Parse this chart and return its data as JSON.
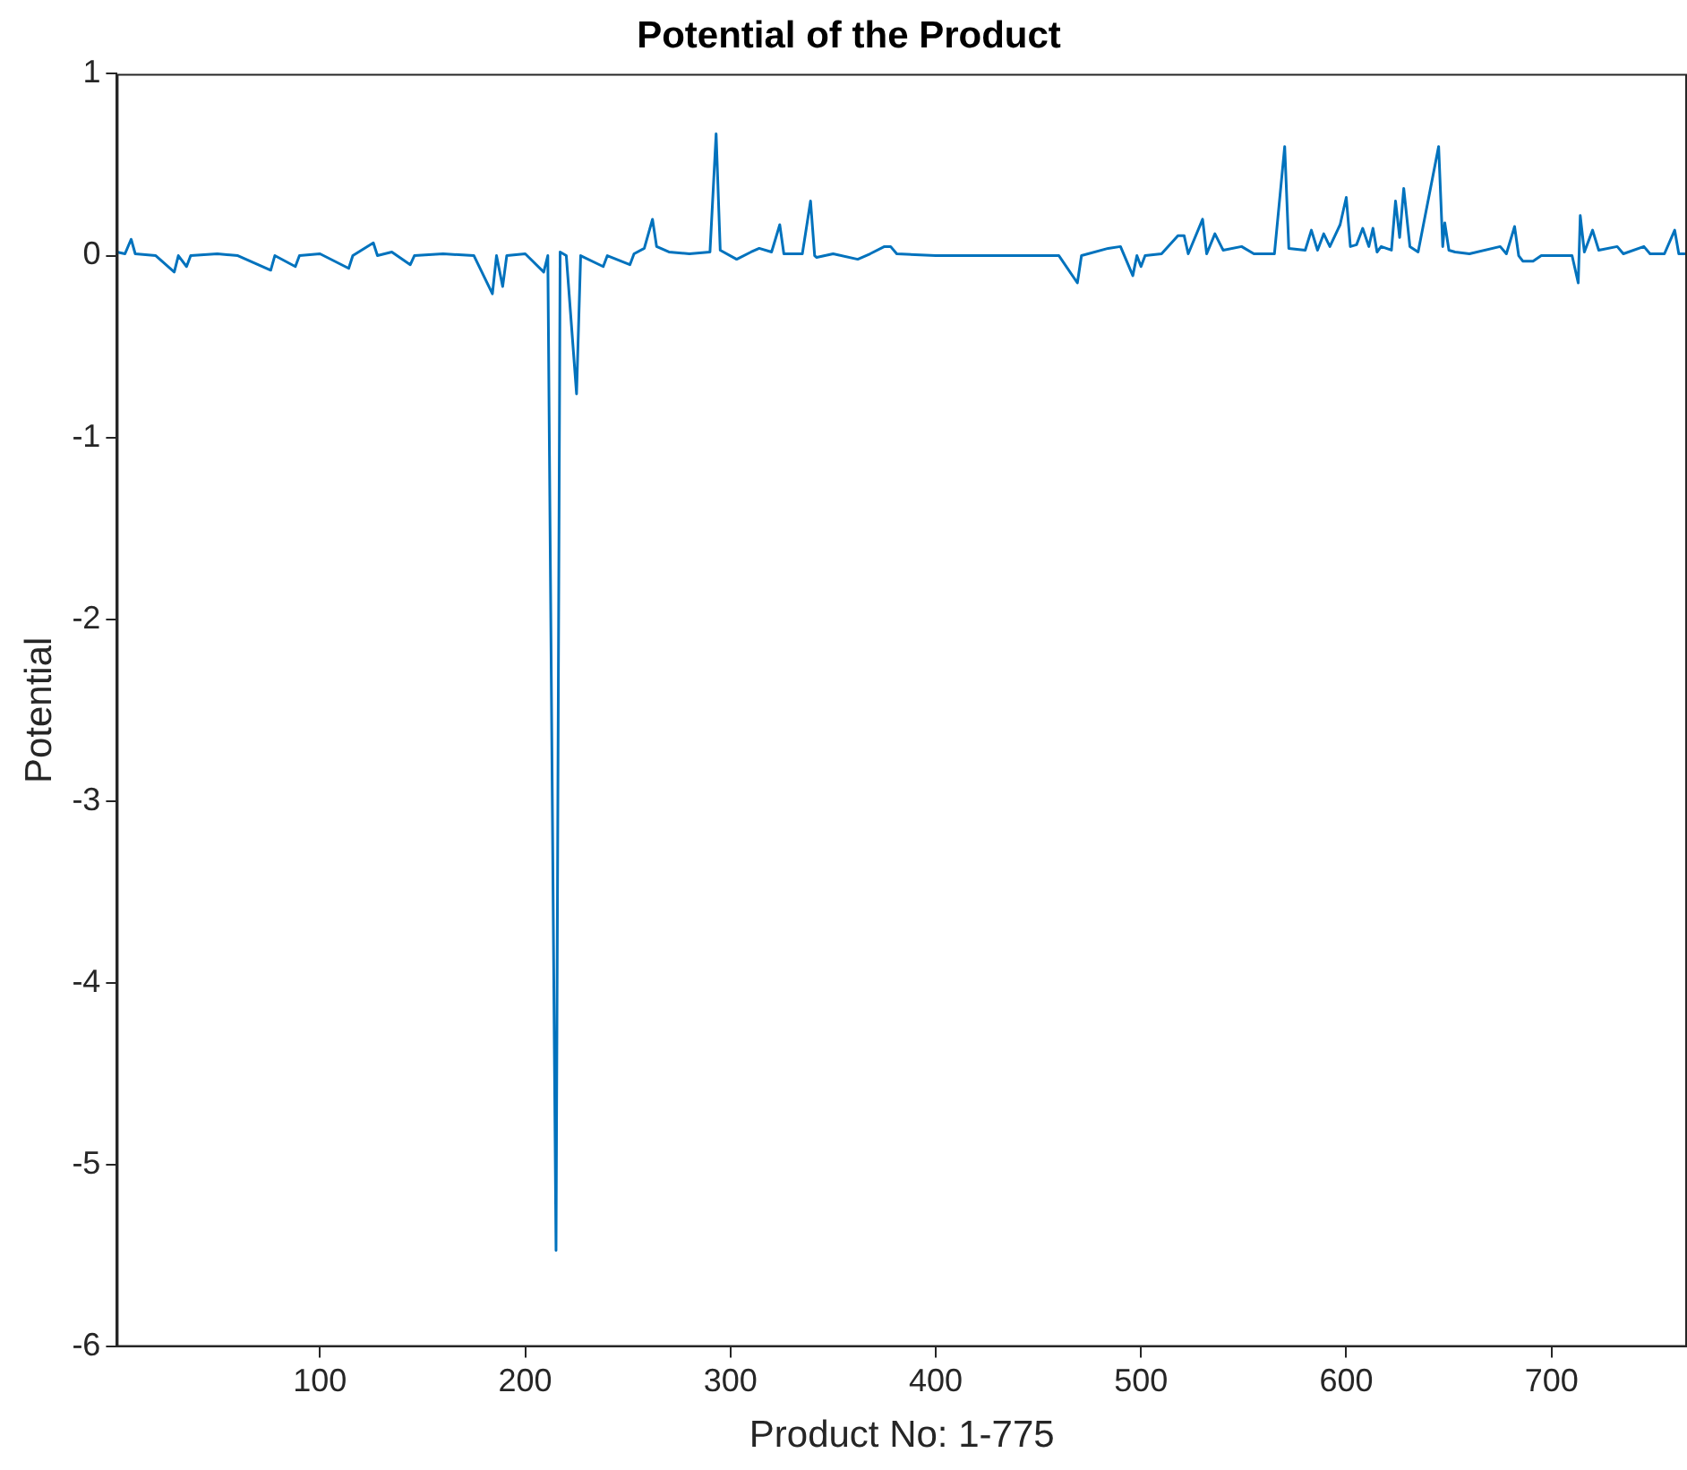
{
  "chart_data": {
    "type": "line",
    "title": "Potential of the Product",
    "xlabel": "Product No: 1-775",
    "ylabel": "Potential",
    "xlim": [
      1,
      766
    ],
    "xticks": [
      100,
      200,
      300,
      400,
      500,
      600,
      700
    ],
    "ylim": [
      -6,
      1
    ],
    "yticks": [
      -6,
      -5,
      -4,
      -3,
      -2,
      -1,
      0,
      1
    ],
    "grid": false,
    "legend": false,
    "marker": "none",
    "line_style": "solid",
    "series": [
      {
        "color": "#0072bd",
        "x": [
          1,
          5,
          8,
          10,
          20,
          29,
          31,
          35,
          37,
          50,
          60,
          76,
          78,
          88,
          90,
          100,
          114,
          116,
          126,
          128,
          135,
          144,
          146,
          160,
          175,
          184,
          186,
          189,
          191,
          200,
          209,
          211,
          215,
          217,
          220,
          225,
          227,
          238,
          240,
          251,
          253,
          258,
          262,
          264,
          270,
          280,
          290,
          293,
          295,
          303,
          310,
          314,
          320,
          324,
          326,
          335,
          339,
          341,
          342,
          350,
          362,
          368,
          375,
          378,
          381,
          400,
          430,
          460,
          469,
          471,
          484,
          490,
          496,
          498,
          500,
          502,
          510,
          518,
          521,
          523,
          530,
          532,
          536,
          540,
          549,
          555,
          565,
          570,
          572,
          580,
          583,
          586,
          589,
          592,
          597,
          600,
          602,
          605,
          608,
          611,
          613,
          615,
          617,
          622,
          624,
          626,
          628,
          631,
          635,
          645,
          647,
          648,
          650,
          653,
          660,
          675,
          678,
          682,
          684,
          686,
          691,
          695,
          710,
          713,
          714,
          716,
          720,
          723,
          732,
          735,
          745,
          748,
          755,
          760,
          762,
          766
        ],
        "values": [
          0.02,
          0.01,
          0.09,
          0.01,
          0.0,
          -0.09,
          0.0,
          -0.06,
          0.0,
          0.01,
          0.0,
          -0.08,
          0.0,
          -0.06,
          0.0,
          0.01,
          -0.07,
          0.0,
          0.07,
          0.0,
          0.02,
          -0.05,
          0.0,
          0.01,
          0.0,
          -0.21,
          0.0,
          -0.17,
          0.0,
          0.01,
          -0.09,
          0.0,
          -5.47,
          0.02,
          0.0,
          -0.76,
          0.0,
          -0.06,
          0.0,
          -0.05,
          0.01,
          0.04,
          0.2,
          0.05,
          0.02,
          0.01,
          0.02,
          0.67,
          0.03,
          -0.02,
          0.02,
          0.04,
          0.02,
          0.17,
          0.01,
          0.01,
          0.3,
          0.0,
          -0.01,
          0.01,
          -0.02,
          0.01,
          0.05,
          0.05,
          0.01,
          0.0,
          0.0,
          0.0,
          -0.15,
          0.0,
          0.04,
          0.05,
          -0.11,
          0.0,
          -0.06,
          0.0,
          0.01,
          0.11,
          0.11,
          0.01,
          0.2,
          0.01,
          0.12,
          0.03,
          0.05,
          0.01,
          0.01,
          0.6,
          0.04,
          0.03,
          0.14,
          0.03,
          0.12,
          0.05,
          0.17,
          0.32,
          0.05,
          0.06,
          0.15,
          0.05,
          0.15,
          0.02,
          0.05,
          0.03,
          0.3,
          0.1,
          0.37,
          0.05,
          0.02,
          0.6,
          0.05,
          0.18,
          0.03,
          0.02,
          0.01,
          0.05,
          0.01,
          0.16,
          0.0,
          -0.03,
          -0.03,
          0.0,
          0.0,
          -0.15,
          0.22,
          0.02,
          0.14,
          0.03,
          0.05,
          0.01,
          0.05,
          0.01,
          0.01,
          0.14,
          0.01,
          0.01
        ]
      }
    ]
  }
}
